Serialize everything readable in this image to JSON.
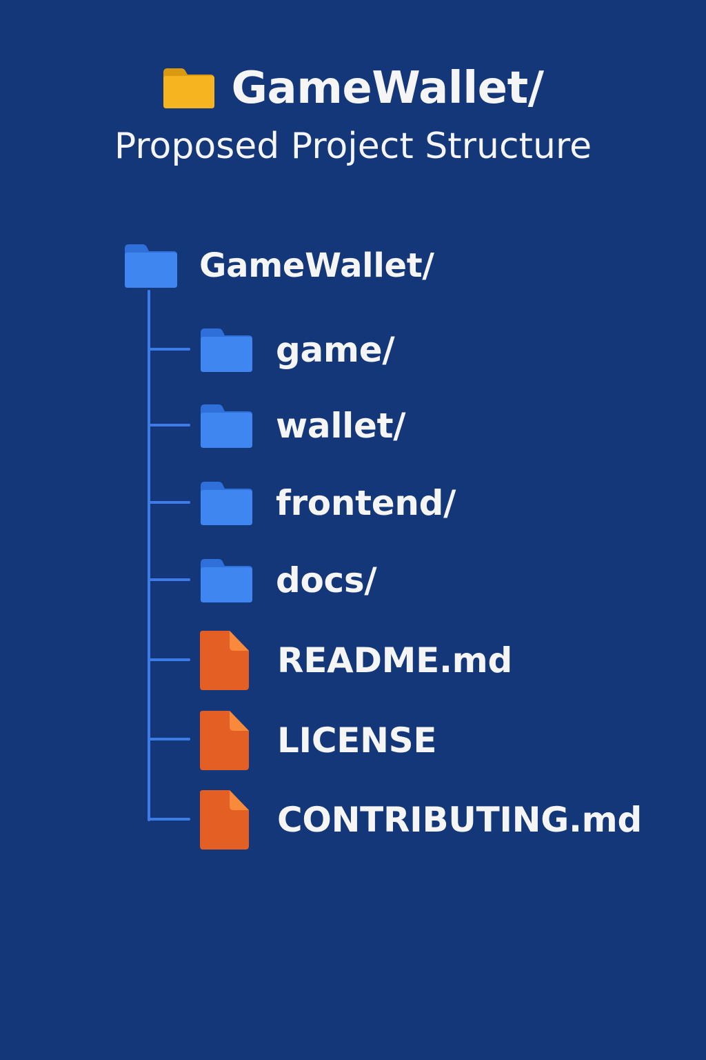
{
  "header": {
    "title": "GameWallet/",
    "subtitle": "Proposed Project Structure",
    "title_icon": "folder-icon"
  },
  "tree": {
    "root": {
      "label": "GameWallet/",
      "type": "folder",
      "icon": "folder-icon"
    },
    "children": [
      {
        "label": "game/",
        "type": "folder",
        "icon": "folder-icon"
      },
      {
        "label": "wallet/",
        "type": "folder",
        "icon": "folder-icon"
      },
      {
        "label": "frontend/",
        "type": "folder",
        "icon": "folder-icon"
      },
      {
        "label": "docs/",
        "type": "folder",
        "icon": "folder-icon"
      },
      {
        "label": "README.md",
        "type": "file",
        "icon": "file-icon"
      },
      {
        "label": "LICENSE",
        "type": "file",
        "icon": "file-icon"
      },
      {
        "label": "CONTRIBUTING.md",
        "type": "file",
        "icon": "file-icon"
      }
    ]
  },
  "colors": {
    "background": "#133778",
    "text": "#f5f5f5",
    "connector": "#3d7ce6",
    "folder_blue": "#3f86f0",
    "folder_blue_tab": "#2f6fd9",
    "folder_yellow": "#f6b520",
    "folder_yellow_tab": "#d99a12",
    "file_orange": "#e35f24",
    "file_orange_fold": "#f98a3c"
  }
}
